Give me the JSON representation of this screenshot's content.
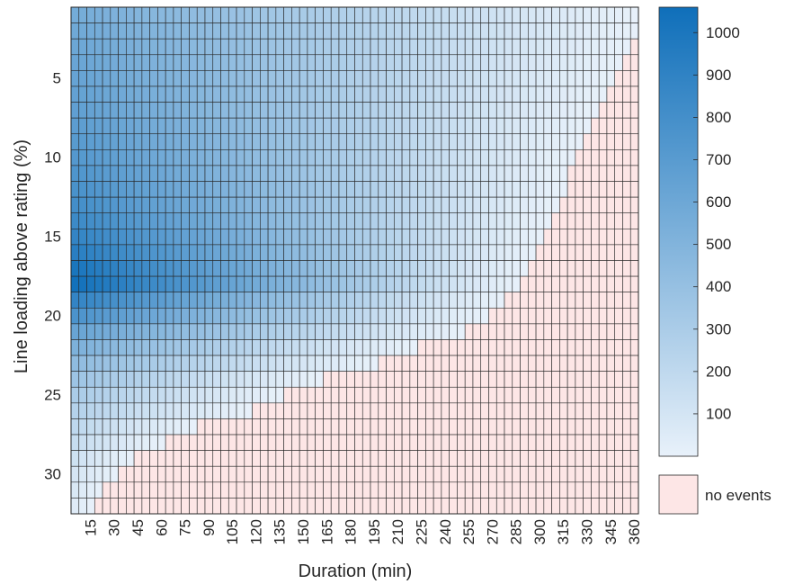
{
  "chart_data": {
    "type": "heatmap",
    "xlabel": "Duration (min)",
    "ylabel": "Line loading above rating (%)",
    "x": {
      "min": 5,
      "max": 360,
      "step": 5,
      "tick_values": [
        15,
        30,
        45,
        60,
        75,
        90,
        105,
        120,
        135,
        150,
        165,
        180,
        195,
        210,
        225,
        240,
        255,
        270,
        285,
        300,
        315,
        330,
        345,
        360
      ],
      "tick_labels": [
        "15",
        "30",
        "45",
        "60",
        "75",
        "90",
        "105",
        "120",
        "135",
        "150",
        "165",
        "180",
        "195",
        "210",
        "225",
        "240",
        "255",
        "270",
        "285",
        "300",
        "315",
        "330",
        "345",
        "360"
      ]
    },
    "y": {
      "min": 1,
      "max": 32,
      "step": 1,
      "tick_values": [
        5,
        10,
        15,
        20,
        25,
        30
      ],
      "tick_labels": [
        "5",
        "10",
        "15",
        "20",
        "25",
        "30"
      ]
    },
    "colorbar": {
      "min": 0,
      "max": 1060,
      "low_color": "#e8f1fa",
      "high_color": "#0f6fba",
      "tick_values": [
        100,
        200,
        300,
        400,
        500,
        600,
        700,
        800,
        900,
        1000
      ],
      "tick_labels": [
        "100",
        "200",
        "300",
        "400",
        "500",
        "600",
        "700",
        "800",
        "900",
        "1000"
      ]
    },
    "no_events": {
      "label": "no events",
      "color": "#fde6e6"
    },
    "max_duration_with_events_min": [
      360,
      360,
      355,
      350,
      345,
      340,
      335,
      330,
      325,
      320,
      315,
      315,
      310,
      305,
      300,
      295,
      290,
      285,
      275,
      265,
      250,
      220,
      195,
      160,
      135,
      115,
      80,
      60,
      40,
      30,
      20,
      15
    ],
    "row_peak_value": [
      560,
      585,
      600,
      615,
      630,
      645,
      660,
      680,
      700,
      720,
      745,
      770,
      800,
      835,
      880,
      930,
      1000,
      1040,
      880,
      760,
      620,
      520,
      430,
      360,
      300,
      250,
      200,
      160,
      120,
      90,
      70,
      40
    ]
  }
}
